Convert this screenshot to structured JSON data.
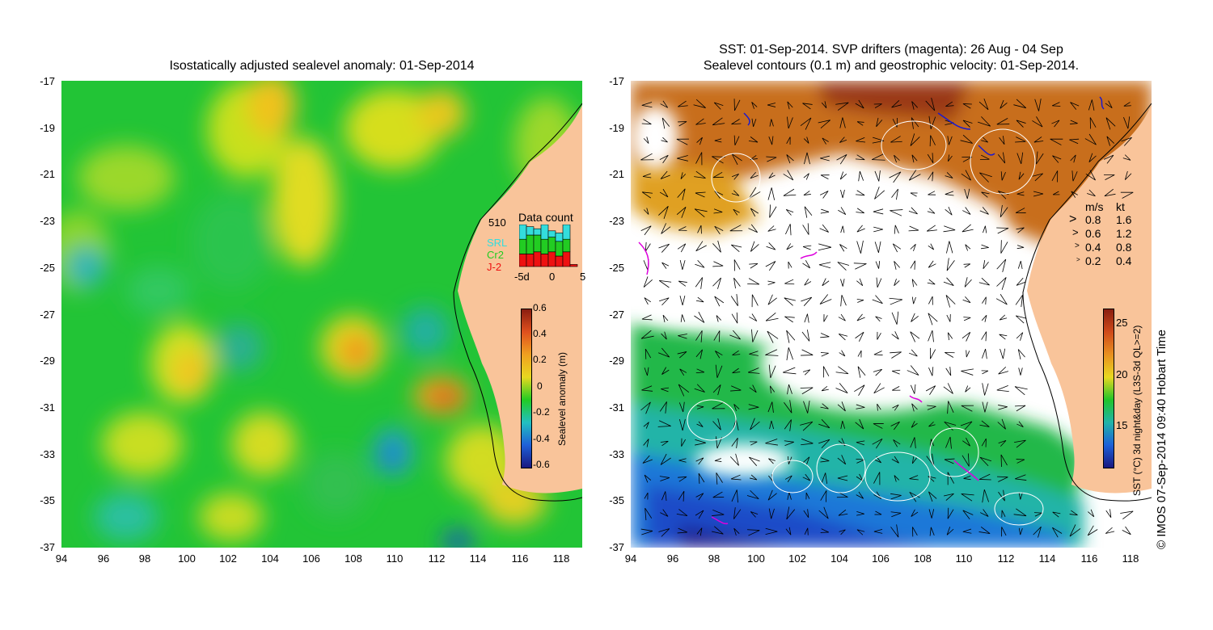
{
  "left_panel": {
    "title": "Isostatically adjusted sealevel anomaly: 01-Sep-2014",
    "y_ticks": [
      "-17",
      "-19",
      "-21",
      "-23",
      "-25",
      "-27",
      "-29",
      "-31",
      "-33",
      "-35",
      "-37"
    ],
    "x_ticks": [
      "94",
      "96",
      "98",
      "100",
      "102",
      "104",
      "106",
      "108",
      "110",
      "112",
      "114",
      "116",
      "118"
    ],
    "data_count": {
      "title": "Data count",
      "max_label": "510",
      "satellites": [
        "SRL",
        "Cr2",
        "J-2"
      ],
      "satellite_colors": [
        "#33dddd",
        "#22cc22",
        "#ee1111"
      ],
      "x_labels": [
        "-5d",
        "0",
        "5"
      ],
      "bars": [
        {
          "srl": 0.35,
          "cr2": 0.35,
          "j2": 0.3
        },
        {
          "srl": 0.2,
          "cr2": 0.45,
          "j2": 0.3
        },
        {
          "srl": 0.15,
          "cr2": 0.4,
          "j2": 0.35
        },
        {
          "srl": 0.35,
          "cr2": 0.35,
          "j2": 0.3
        },
        {
          "srl": 0.15,
          "cr2": 0.35,
          "j2": 0.35
        },
        {
          "srl": 0.2,
          "cr2": 0.35,
          "j2": 0.25
        },
        {
          "srl": 0.35,
          "cr2": 0.3,
          "j2": 0.35
        },
        {
          "srl": 0.0,
          "cr2": 0.0,
          "j2": 0.05
        }
      ]
    },
    "colorbar": {
      "label": "Sealevel anomaly (m)",
      "ticks": [
        "0.6",
        "0.4",
        "0.2",
        "0",
        "-0.2",
        "-0.4",
        "-0.6"
      ]
    }
  },
  "right_panel": {
    "title_line1": "SST: 01-Sep-2014. SVP drifters (magenta): 26 Aug - 04 Sep",
    "title_line2": "Sealevel contours (0.1 m) and geostrophic velocity: 01-Sep-2014.",
    "y_ticks": [
      "-17",
      "-19",
      "-21",
      "-23",
      "-25",
      "-27",
      "-29",
      "-31",
      "-33",
      "-35",
      "-37"
    ],
    "x_ticks": [
      "94",
      "96",
      "98",
      "100",
      "102",
      "104",
      "106",
      "108",
      "110",
      "112",
      "114",
      "116",
      "118"
    ],
    "speed_legend": {
      "header_ms": "m/s",
      "header_kt": "kt",
      "rows": [
        {
          "ms": "0.8",
          "kt": "1.6"
        },
        {
          "ms": "0.6",
          "kt": "1.2"
        },
        {
          "ms": "0.4",
          "kt": "0.8"
        },
        {
          "ms": "0.2",
          "kt": "0.4"
        }
      ]
    },
    "colorbar": {
      "label": "SST (°C) 3d night&day (L3S-3d QL>=2)",
      "ticks": [
        "25",
        "20",
        "15"
      ]
    }
  },
  "copyright": "© IMOS 07-Sep-2014 09:40 Hobart Time",
  "colors": {
    "land": "#f9c49a",
    "ssl_neutral": "#22cc22",
    "ssl_high": "#e6501e",
    "ssl_low": "#1e40c8",
    "sst_warm": "#d2641e",
    "sst_cold": "#1e78dc",
    "drifter": "#dd00dd"
  }
}
